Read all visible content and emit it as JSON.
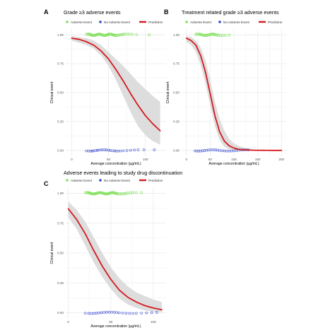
{
  "colors": {
    "adverse": "#7ee05a",
    "no_adverse": "#3347d1",
    "prediction": "#d6181e",
    "band": "#d9d9d9",
    "grid": "#ebebeb",
    "tick_text": "#555555"
  },
  "chart_data": [
    {
      "panel": "A",
      "type": "scatter",
      "title": "Grade ≥3 adverse events",
      "xlabel": "Average concentration (µg/mL)",
      "ylabel": "Clinical event",
      "xlim": [
        -8,
        128
      ],
      "ylim": [
        -0.05,
        1.05
      ],
      "xticks": [
        0,
        50,
        100
      ],
      "xtick_labels": [
        "0",
        "50",
        "100"
      ],
      "yticks": [
        0,
        0.25,
        0.5,
        0.75,
        1
      ],
      "ytick_labels": [
        "0.00",
        "0.25",
        "0.50",
        "0.75",
        "1.00"
      ],
      "legend": [
        "Adverse Event",
        "No Adverse Event",
        "Prediction"
      ],
      "legend_position": "top",
      "grid": true,
      "adverse_x": [
        20,
        22,
        23,
        24,
        25,
        26,
        27,
        28,
        29,
        30,
        31,
        32,
        33,
        34,
        35,
        36,
        37,
        38,
        39,
        40,
        41,
        42,
        43,
        44,
        45,
        46,
        47,
        48,
        49,
        50,
        51,
        52,
        53,
        54,
        55,
        56,
        57,
        58,
        59,
        60,
        62,
        64,
        66,
        68,
        70,
        72,
        75,
        78,
        82,
        88,
        105
      ],
      "no_adverse_x": [
        20,
        23,
        26,
        28,
        30,
        33,
        35,
        37,
        40,
        42,
        45,
        47,
        50,
        52,
        55,
        58,
        60,
        63,
        66,
        70,
        75,
        80,
        85,
        90,
        98,
        112
      ],
      "prediction": {
        "x": [
          0,
          10,
          20,
          30,
          40,
          50,
          60,
          70,
          80,
          90,
          100,
          110,
          120
        ],
        "y": [
          0.97,
          0.96,
          0.94,
          0.91,
          0.86,
          0.79,
          0.7,
          0.6,
          0.49,
          0.39,
          0.3,
          0.23,
          0.17
        ],
        "lower": [
          0.95,
          0.93,
          0.91,
          0.88,
          0.82,
          0.73,
          0.61,
          0.47,
          0.33,
          0.21,
          0.13,
          0.08,
          0.05
        ],
        "upper": [
          0.99,
          0.98,
          0.97,
          0.95,
          0.91,
          0.85,
          0.79,
          0.73,
          0.66,
          0.59,
          0.53,
          0.47,
          0.42
        ]
      }
    },
    {
      "panel": "B",
      "type": "scatter",
      "title": "Treatment related grade ≥3 adverse events",
      "xlabel": "Average concentration (µg/mL)",
      "ylabel": "Clinical event",
      "xlim": [
        -10,
        210
      ],
      "ylim": [
        -0.05,
        1.05
      ],
      "xticks": [
        0,
        50,
        100,
        150,
        200
      ],
      "xtick_labels": [
        "0",
        "50",
        "100",
        "150",
        "200"
      ],
      "yticks": [
        0,
        0.25,
        0.5,
        0.75,
        1
      ],
      "ytick_labels": [
        "0.00",
        "0.25",
        "0.50",
        "0.75",
        "1.00"
      ],
      "legend": [
        "Adverse Event",
        "No Adverse Event",
        "Prediction"
      ],
      "legend_position": "top",
      "grid": true,
      "adverse_x": [
        20,
        23,
        26,
        28,
        30,
        32,
        34,
        36,
        38,
        40,
        42,
        44,
        46,
        48,
        50,
        52,
        54,
        56,
        58,
        60,
        62,
        65,
        68,
        72,
        76,
        82,
        90
      ],
      "no_adverse_x": [
        18,
        22,
        26,
        30,
        34,
        38,
        42,
        46,
        50,
        54,
        58,
        62,
        66,
        70,
        75,
        80,
        85,
        90,
        95,
        100,
        105,
        110,
        115,
        120,
        125,
        130
      ],
      "prediction": {
        "x": [
          0,
          10,
          20,
          30,
          40,
          50,
          60,
          70,
          80,
          90,
          100,
          110,
          120,
          140,
          160,
          180,
          200
        ],
        "y": [
          0.97,
          0.95,
          0.91,
          0.82,
          0.68,
          0.49,
          0.3,
          0.16,
          0.08,
          0.04,
          0.02,
          0.01,
          0.005,
          0.002,
          0.001,
          0.0,
          0.0
        ],
        "lower": [
          0.94,
          0.91,
          0.85,
          0.74,
          0.58,
          0.39,
          0.21,
          0.09,
          0.03,
          0.01,
          0.0,
          0.0,
          0.0,
          0.0,
          0.0,
          0.0,
          0.0
        ],
        "upper": [
          0.99,
          0.98,
          0.95,
          0.89,
          0.78,
          0.61,
          0.42,
          0.27,
          0.17,
          0.1,
          0.06,
          0.04,
          0.025,
          0.01,
          0.005,
          0.002,
          0.001
        ]
      }
    },
    {
      "panel": "C",
      "type": "scatter",
      "title": "Adverse events leading to study drug discontinuation",
      "xlabel": "Average concentration (µg/mL)",
      "ylabel": "Clinical event",
      "xlim": [
        -3,
        115
      ],
      "ylim": [
        -0.05,
        1.05
      ],
      "xticks": [
        0,
        50,
        100
      ],
      "xtick_labels": [
        "0",
        "50",
        "100"
      ],
      "yticks": [
        0,
        0.25,
        0.5,
        0.75,
        1
      ],
      "ytick_labels": [
        "0.00",
        "0.25",
        "0.50",
        "0.75",
        "1.00"
      ],
      "legend": [
        "Adverse Event",
        "No Adverse Event",
        "Prediction"
      ],
      "legend_position": "top",
      "grid": true,
      "adverse_x": [
        20,
        22,
        23,
        24,
        25,
        26,
        27,
        28,
        29,
        30,
        31,
        32,
        33,
        34,
        35,
        36,
        37,
        38,
        39,
        40,
        41,
        42,
        43,
        44,
        45,
        46,
        47,
        48,
        49,
        50,
        51,
        52,
        53,
        54,
        55,
        56,
        57,
        58,
        60,
        62,
        64,
        66,
        68,
        70,
        73,
        76,
        80,
        86
      ],
      "no_adverse_x": [
        20,
        24,
        27,
        30,
        33,
        36,
        39,
        42,
        45,
        48,
        51,
        54,
        57,
        60,
        64,
        68,
        72,
        76,
        80,
        86,
        92,
        98,
        104
      ],
      "prediction": {
        "x": [
          0,
          10,
          20,
          30,
          40,
          50,
          60,
          70,
          80,
          90,
          100,
          110
        ],
        "y": [
          0.87,
          0.78,
          0.66,
          0.52,
          0.39,
          0.28,
          0.19,
          0.13,
          0.09,
          0.06,
          0.04,
          0.025
        ],
        "lower": [
          0.8,
          0.7,
          0.56,
          0.42,
          0.3,
          0.2,
          0.12,
          0.07,
          0.04,
          0.02,
          0.01,
          0.005
        ],
        "upper": [
          0.93,
          0.86,
          0.76,
          0.63,
          0.5,
          0.38,
          0.29,
          0.22,
          0.17,
          0.14,
          0.11,
          0.09
        ]
      }
    }
  ]
}
